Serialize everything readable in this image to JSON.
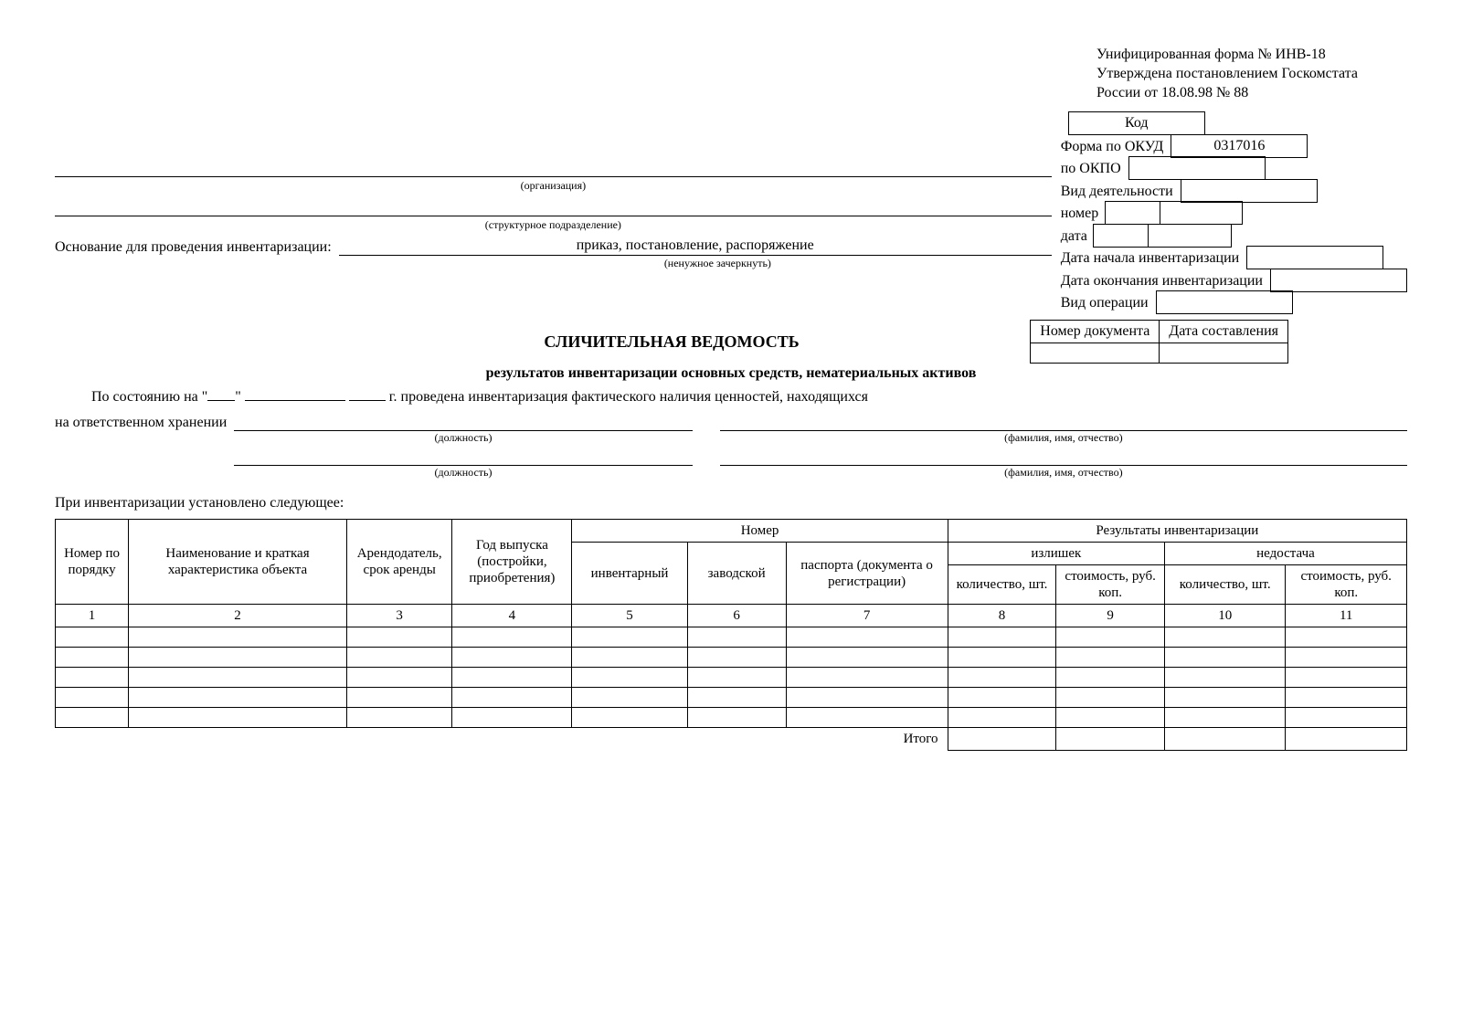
{
  "header": {
    "line1": "Унифицированная форма № ИНВ-18",
    "line2": "Утверждена постановлением Госкомстата",
    "line3": "России от 18.08.98 № 88"
  },
  "codes": {
    "header": "Код",
    "okud_label": "Форма по ОКУД",
    "okud_value": "0317016",
    "okpo_label": "по ОКПО",
    "okpo_value": "",
    "org_caption": "(организация)",
    "subdiv_caption": "(структурное подразделение)",
    "activity_label": "Вид деятельности",
    "activity_value": "",
    "basis_label": "Основание для проведения инвентаризации:",
    "basis_value": "приказ, постановление, распоряжение",
    "basis_caption": "(ненужное зачеркнуть)",
    "number_label": "номер",
    "number_value": "",
    "date_label": "дата",
    "date_value": "",
    "start_label": "Дата начала инвентаризации",
    "start_value": "",
    "end_label": "Дата окончания инвентаризации",
    "end_value": "",
    "optype_label": "Вид операции",
    "optype_value": ""
  },
  "docref": {
    "doc_num_label": "Номер документа",
    "doc_date_label": "Дата составления",
    "doc_num_value": "",
    "doc_date_value": ""
  },
  "title": {
    "main": "СЛИЧИТЕЛЬНАЯ ВЕДОМОСТЬ",
    "sub": "результатов инвентаризации основных средств, нематериальных активов"
  },
  "state": {
    "prefix": "По состоянию на \"",
    "mid1": "\"",
    "mid2": "г. проведена инвентаризация фактического наличия ценностей, находящихся",
    "line2": "на ответственном хранении",
    "pos_caption": "(должность)",
    "fio_caption": "(фамилия, имя, отчество)",
    "established": "При инвентаризации установлено следующее:"
  },
  "table": {
    "columns": {
      "c1": "Номер по порядку",
      "c2": "Наименование и краткая характеристика объекта",
      "c3": "Арендодатель, срок аренды",
      "c4": "Год выпуска (постройки, приобретения)",
      "c_nomer": "Номер",
      "c5": "инвентарный",
      "c6": "заводской",
      "c7": "паспорта (документа о регистрации)",
      "c_results": "Результаты инвентаризации",
      "c_surplus": "излишек",
      "c_shortage": "недостача",
      "c8": "количество, шт.",
      "c9": "стоимость, руб. коп.",
      "c10": "количество, шт.",
      "c11": "стоимость, руб. коп."
    },
    "nums": [
      "1",
      "2",
      "3",
      "4",
      "5",
      "6",
      "7",
      "8",
      "9",
      "10",
      "11"
    ],
    "itogo": "Итого",
    "col_widths_pct": [
      5.2,
      15.5,
      7.5,
      8.5,
      8.2,
      7.0,
      11.5,
      7.7,
      7.7,
      8.6,
      8.6
    ]
  }
}
